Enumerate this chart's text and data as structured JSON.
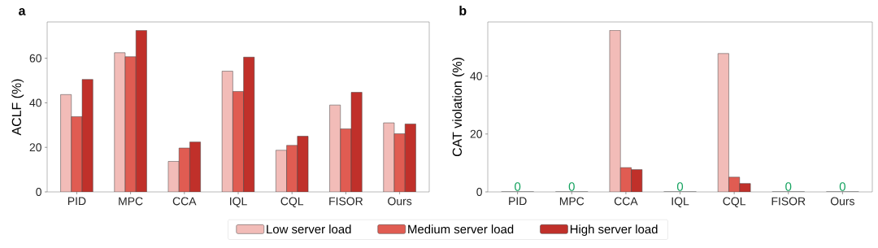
{
  "chart_data": [
    {
      "type": "bar",
      "title": "a",
      "ylabel": "ACLF (%)",
      "categories": [
        "PID",
        "MPC",
        "CCA",
        "IQL",
        "CQL",
        "FISOR",
        "Ours"
      ],
      "ylim": [
        0,
        76.3
      ],
      "yticks": [
        0,
        20,
        40,
        60
      ],
      "legend": "bottom",
      "series": [
        {
          "name": "Low server load",
          "color": "#f2bcb8",
          "values": [
            43.7,
            62.5,
            13.7,
            54.2,
            18.7,
            39.0,
            31.0
          ]
        },
        {
          "name": "Medium server load",
          "color": "#e05c52",
          "values": [
            33.8,
            60.7,
            19.7,
            45.1,
            20.9,
            28.3,
            26.1
          ]
        },
        {
          "name": "High server load",
          "color": "#c0302a",
          "values": [
            50.5,
            72.5,
            22.4,
            60.5,
            25.0,
            44.7,
            30.5
          ]
        }
      ]
    },
    {
      "type": "bar",
      "title": "b",
      "ylabel": "CAT violation (%)",
      "categories": [
        "PID",
        "MPC",
        "CCA",
        "IQL",
        "CQL",
        "FISOR",
        "Ours"
      ],
      "ylim": [
        0,
        58.7
      ],
      "yticks": [
        0,
        20,
        40
      ],
      "series": [
        {
          "color": "#f2bcb8",
          "values": [
            0,
            0,
            55.8,
            0,
            47.8,
            0,
            0
          ]
        },
        {
          "color": "#e05c52",
          "values": [
            0,
            0,
            8.4,
            0,
            5.1,
            0,
            0
          ],
          "value_labels": [
            "0",
            "0",
            null,
            "0",
            null,
            "0",
            "0"
          ]
        },
        {
          "color": "#c0302a",
          "values": [
            0,
            0,
            7.7,
            0,
            2.9,
            0,
            0
          ]
        }
      ]
    }
  ]
}
